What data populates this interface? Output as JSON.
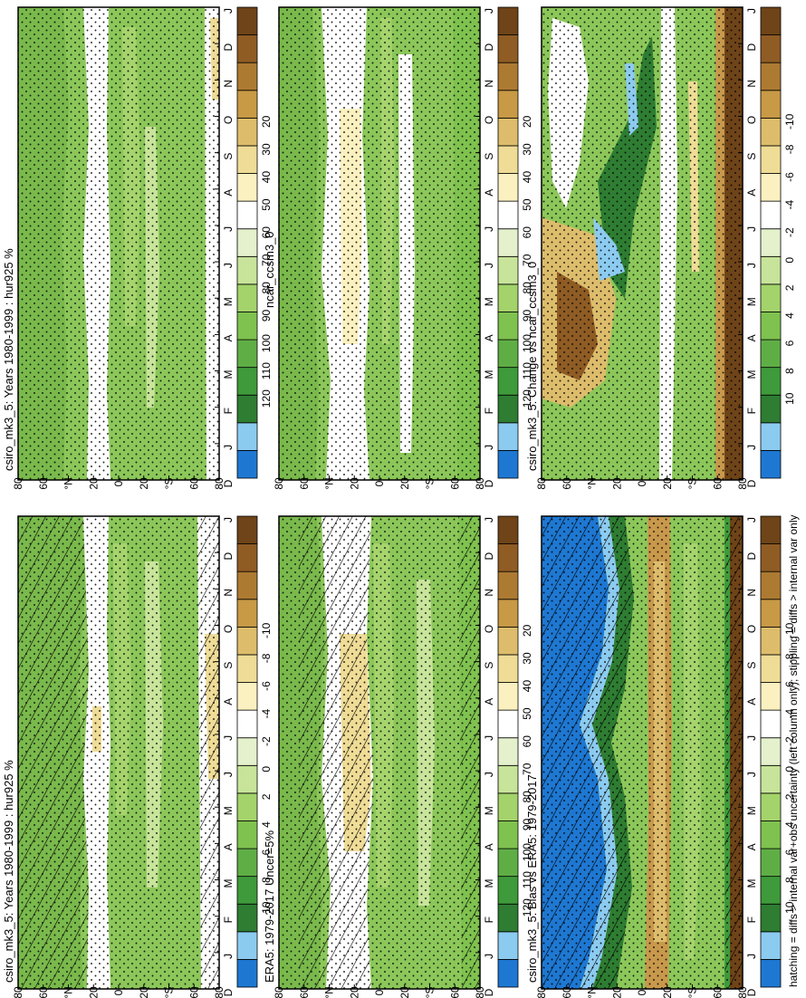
{
  "footer_text": "hatching = diffs > internal var+obs uncertainty (left column only); stippling = diffs > internal var only",
  "months": [
    "D",
    "J",
    "F",
    "M",
    "A",
    "M",
    "J",
    "J",
    "A",
    "S",
    "O",
    "N",
    "D",
    "J"
  ],
  "lat_labels": [
    "80",
    "60",
    "°N",
    "20",
    "0",
    "20",
    "°S",
    "60",
    "80"
  ],
  "humidity_colorbar": {
    "labels": [
      "120",
      "110",
      "100",
      "90",
      "80",
      "70",
      "60",
      "50",
      "40",
      "30",
      "20"
    ],
    "colors": [
      "#1e78d2",
      "#8ccbf0",
      "#2e7d32",
      "#3e9a3a",
      "#5fae45",
      "#7fc24f",
      "#a3d36a",
      "#c7e49a",
      "#e4f1cc",
      "#ffffff",
      "#fbf1c0",
      "#efdc96",
      "#ddbd6c",
      "#c89a46",
      "#ad7a32",
      "#8f5c24",
      "#6e4418"
    ]
  },
  "difference_colorbar": {
    "labels": [
      "10",
      "8",
      "6",
      "4",
      "2",
      "0",
      "-2",
      "-4",
      "-6",
      "-8",
      "-10"
    ],
    "colors": [
      "#1e78d2",
      "#8ccbf0",
      "#2e7d32",
      "#3e9a3a",
      "#5fae45",
      "#7fc24f",
      "#a3d36a",
      "#c7e49a",
      "#e4f1cc",
      "#ffffff",
      "#fbf1c0",
      "#efdc96",
      "#ddbd6c",
      "#c89a46",
      "#ad7a32",
      "#8f5c24",
      "#6e4418"
    ]
  },
  "chart_data": [
    {
      "type": "heatmap",
      "title": "csiro_mk3_5: Years 1980-1999 : hur925 %",
      "colorbar": "humidity",
      "hatching": true,
      "stippling": true
    },
    {
      "type": "heatmap",
      "title": "csiro_mk3_5: Years 1980-1999 : hur925 %",
      "colorbar": "humidity",
      "hatching": false,
      "stippling": true
    },
    {
      "type": "heatmap",
      "title": "ERA5: 1979-2017 Uncer=5%",
      "colorbar": "humidity",
      "hatching": true,
      "stippling": true
    },
    {
      "type": "heatmap",
      "title": "ncar_ccsm3_0",
      "colorbar": "humidity",
      "hatching": false,
      "stippling": true
    },
    {
      "type": "heatmap",
      "title": "csiro_mk3_5: Bias vs ERA5: 1979-2017",
      "colorbar": "difference",
      "hatching": true,
      "stippling": true
    },
    {
      "type": "heatmap",
      "title": "csiro_mk3_5: Change vs ncar_ccsm3_0",
      "colorbar": "difference",
      "hatching": false,
      "stippling": true
    }
  ]
}
